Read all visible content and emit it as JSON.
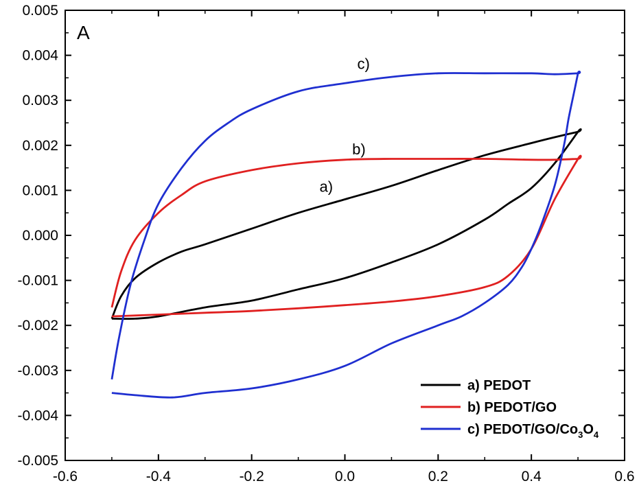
{
  "chart_data": {
    "type": "line",
    "panel_label": "A",
    "xlabel": "",
    "ylabel": "",
    "xlim": [
      -0.6,
      0.6
    ],
    "ylim": [
      -0.005,
      0.005
    ],
    "x_ticks": [
      -0.6,
      -0.4,
      -0.2,
      0.0,
      0.2,
      0.4,
      0.6
    ],
    "x_tick_labels": [
      "-0.6",
      "-0.4",
      "-0.2",
      "0.0",
      "0.2",
      "0.4",
      "0.6"
    ],
    "y_ticks": [
      -0.005,
      -0.004,
      -0.003,
      -0.002,
      -0.001,
      0.0,
      0.001,
      0.002,
      0.003,
      0.004,
      0.005
    ],
    "y_tick_labels": [
      "-0.005",
      "-0.004",
      "-0.003",
      "-0.002",
      "-0.001",
      "0.000",
      "0.001",
      "0.002",
      "0.003",
      "0.004",
      "0.005"
    ],
    "grid": false,
    "legend_position": "bottom-right",
    "series": [
      {
        "id": "a",
        "name": "a) PEDOT",
        "legend": {
          "prefix": "a) PEDOT",
          "parts": []
        },
        "curve_label": "a)",
        "curve_label_pos": [
          -0.04,
          0.00097
        ],
        "color": "#000000",
        "x": [
          -0.5,
          -0.48,
          -0.45,
          -0.4,
          -0.35,
          -0.3,
          -0.2,
          -0.1,
          0.0,
          0.1,
          0.2,
          0.3,
          0.4,
          0.45,
          0.5,
          0.5,
          0.45,
          0.4,
          0.35,
          0.3,
          0.2,
          0.1,
          0.0,
          -0.1,
          -0.2,
          -0.3,
          -0.4,
          -0.45,
          -0.5
        ],
        "y": [
          -0.00185,
          -0.00135,
          -0.00095,
          -0.0006,
          -0.00036,
          -0.0002,
          0.00015,
          0.0005,
          0.0008,
          0.0011,
          0.00145,
          0.00178,
          0.00205,
          0.00218,
          0.0023,
          0.0023,
          0.0016,
          0.00105,
          0.0007,
          0.00035,
          -0.0002,
          -0.0006,
          -0.00095,
          -0.0012,
          -0.00145,
          -0.0016,
          -0.0018,
          -0.00185,
          -0.00185
        ]
      },
      {
        "id": "b",
        "name": "b) PEDOT/GO",
        "legend": {
          "prefix": "b) PEDOT/GO",
          "parts": []
        },
        "curve_label": "b)",
        "curve_label_pos": [
          0.03,
          0.0018
        ],
        "color": "#e02020",
        "x": [
          -0.5,
          -0.48,
          -0.45,
          -0.4,
          -0.35,
          -0.3,
          -0.2,
          -0.1,
          0.0,
          0.1,
          0.2,
          0.3,
          0.4,
          0.45,
          0.5,
          0.5,
          0.45,
          0.4,
          0.35,
          0.3,
          0.2,
          0.1,
          0.0,
          -0.1,
          -0.2,
          -0.3,
          -0.4,
          -0.45,
          -0.5
        ],
        "y": [
          -0.0016,
          -0.0008,
          -0.0001,
          0.0005,
          0.0009,
          0.0012,
          0.00145,
          0.0016,
          0.00168,
          0.0017,
          0.0017,
          0.0017,
          0.00168,
          0.00168,
          0.0017,
          0.0017,
          0.0008,
          -0.0003,
          -0.0009,
          -0.00115,
          -0.00135,
          -0.00147,
          -0.00155,
          -0.00162,
          -0.00168,
          -0.00172,
          -0.00176,
          -0.00178,
          -0.0018
        ]
      },
      {
        "id": "c",
        "name": "c) PEDOT/GO/Co3O4",
        "legend": {
          "prefix": "c) PEDOT/GO/Co",
          "parts": [
            {
              "sub": "3"
            },
            {
              "text": "O"
            },
            {
              "sub": "4"
            }
          ]
        },
        "curve_label": "c)",
        "curve_label_pos": [
          0.04,
          0.0037
        ],
        "color": "#1f2fd0",
        "x": [
          -0.5,
          -0.485,
          -0.46,
          -0.43,
          -0.4,
          -0.35,
          -0.3,
          -0.25,
          -0.2,
          -0.1,
          0.0,
          0.1,
          0.2,
          0.3,
          0.4,
          0.45,
          0.5,
          0.5,
          0.49,
          0.48,
          0.47,
          0.45,
          0.42,
          0.4,
          0.38,
          0.35,
          0.3,
          0.25,
          0.2,
          0.1,
          0.0,
          -0.1,
          -0.2,
          -0.3,
          -0.37,
          -0.45,
          -0.5
        ],
        "y": [
          -0.0032,
          -0.0023,
          -0.0011,
          -0.0001,
          0.0007,
          0.0015,
          0.0021,
          0.0025,
          0.0028,
          0.0032,
          0.00338,
          0.00352,
          0.0036,
          0.0036,
          0.0036,
          0.00358,
          0.0036,
          0.0036,
          0.0031,
          0.0026,
          0.002,
          0.0011,
          0.0002,
          -0.0003,
          -0.0007,
          -0.0011,
          -0.0015,
          -0.0018,
          -0.002,
          -0.0024,
          -0.0029,
          -0.0032,
          -0.0034,
          -0.0035,
          -0.0036,
          -0.00355,
          -0.0035
        ]
      }
    ]
  }
}
